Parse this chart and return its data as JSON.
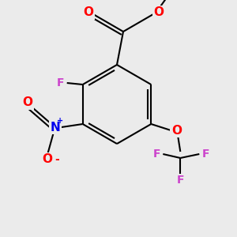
{
  "background_color": "#ebebeb",
  "bond_color": "#000000",
  "atom_colors": {
    "O": "#ff0000",
    "F": "#cc44cc",
    "N": "#0000ee",
    "C": "#000000"
  },
  "figsize": [
    3.0,
    3.0
  ],
  "dpi": 100
}
